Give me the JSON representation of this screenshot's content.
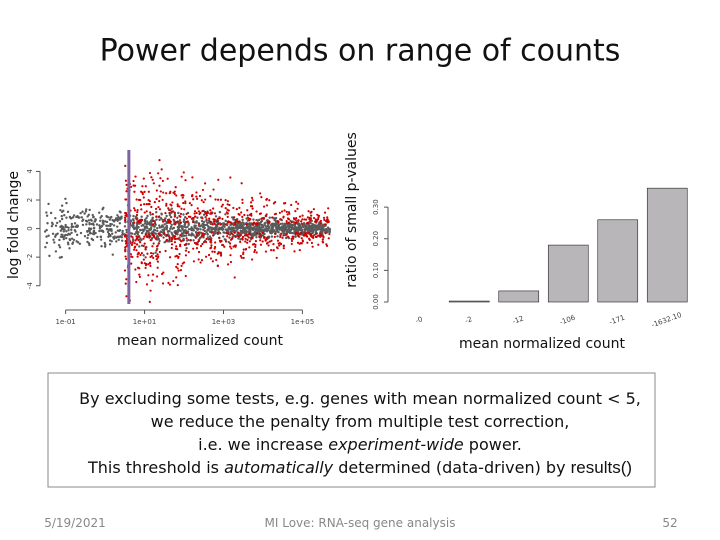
{
  "title": "Power depends on range of counts",
  "chart_data": [
    {
      "type": "scatter",
      "x_label": "mean normalized count",
      "y_label": "log fold change",
      "log_x": true,
      "xlim": [
        0.03,
        500000
      ],
      "ylim": [
        -5,
        5.5
      ],
      "xticks": [
        {
          "value": 0.1,
          "label": "1e-01"
        },
        {
          "value": 10,
          "label": "1e+01"
        },
        {
          "value": 1000,
          "label": "1e+03"
        },
        {
          "value": 100000,
          "label": "1e+05"
        }
      ],
      "yticks": [
        -4,
        -2,
        0,
        2,
        4
      ],
      "vline": 4,
      "vline_color": "#7b64a0",
      "colors": [
        "#5a5a5a",
        "#d00000"
      ]
    },
    {
      "type": "bar",
      "x_label": "mean normalized count",
      "y_label": "ratio of small p-values",
      "categories": [
        "-0",
        "-2",
        "-12",
        "-106",
        "-171",
        "-1632.10"
      ],
      "values": [
        0,
        0.003,
        0.035,
        0.18,
        0.26,
        0.36
      ],
      "color": "#b8b6b9",
      "ylim": [
        0,
        0.37
      ],
      "yticks": [
        {
          "value": 0,
          "label": "0.00"
        },
        {
          "value": 0.1,
          "label": "0.10"
        },
        {
          "value": 0.2,
          "label": "0.20"
        },
        {
          "value": 0.3,
          "label": "0.30"
        }
      ]
    }
  ],
  "body": {
    "lines": [
      {
        "segments": [
          {
            "text": "By excluding some tests, e.g. genes with mean normalized count < 5,"
          }
        ]
      },
      {
        "segments": [
          {
            "text": "we reduce the penalty from multiple test correction,"
          }
        ]
      },
      {
        "segments": [
          {
            "text": "i.e. we increase "
          },
          {
            "text": "experiment-wide",
            "style": "italic"
          },
          {
            "text": " power."
          }
        ]
      },
      {
        "segments": [
          {
            "text": "This threshold is "
          },
          {
            "text": "automatically",
            "style": "italic"
          },
          {
            "text": " determined (data-driven) by "
          },
          {
            "text": "results()",
            "style": "code"
          }
        ]
      }
    ]
  },
  "footer": {
    "date": "5/19/2021",
    "author": "MI Love: RNA-seq gene analysis",
    "page": "52"
  }
}
